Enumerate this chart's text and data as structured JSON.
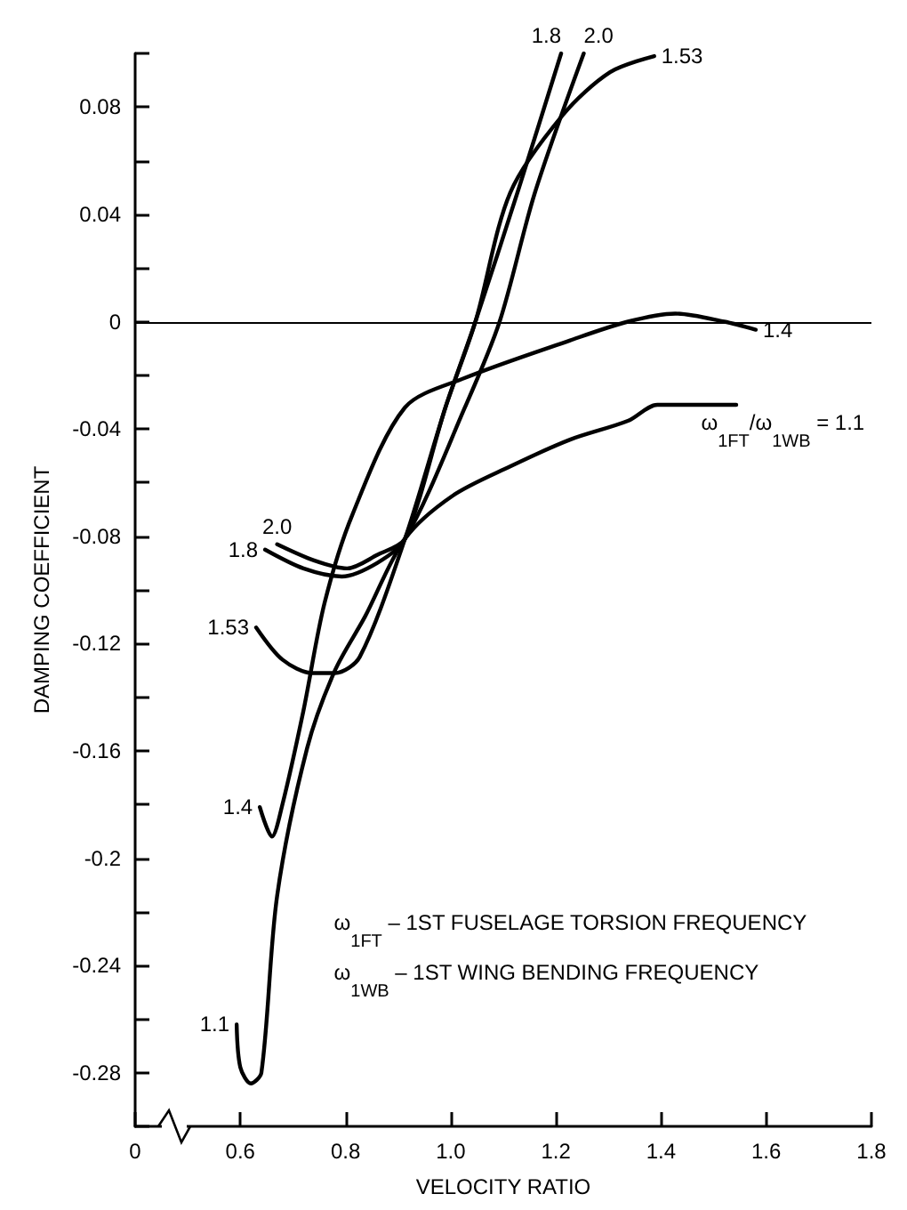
{
  "chart_data": {
    "type": "line",
    "xlabel": "VELOCITY RATIO",
    "ylabel": "DAMPING COEFFICIENT",
    "xlim": [
      0.4,
      1.8
    ],
    "xticks": [
      {
        "value": 0.4,
        "label": "0"
      },
      0.6,
      0.8,
      {
        "value": 1.0,
        "label": "1.0"
      },
      1.2,
      1.4,
      1.6,
      1.8
    ],
    "ylim": [
      -0.3,
      0.1
    ],
    "yticks": [
      {
        "value": -0.3,
        "label": null
      },
      -0.28,
      {
        "value": -0.26,
        "label": null
      },
      -0.24,
      {
        "value": -0.22,
        "label": null
      },
      -0.2,
      {
        "value": -0.18,
        "label": null
      },
      -0.16,
      {
        "value": -0.14,
        "label": null
      },
      -0.12,
      {
        "value": -0.1,
        "label": null
      },
      -0.08,
      {
        "value": -0.06,
        "label": null
      },
      -0.04,
      {
        "value": -0.02,
        "label": null
      },
      0,
      {
        "value": 0.02,
        "label": null
      },
      0.04,
      {
        "value": 0.06,
        "label": null
      },
      0.08,
      {
        "value": 0.1,
        "label": null
      }
    ],
    "grid": false,
    "legend": false,
    "marker": "none",
    "line_style": "solid",
    "ref_lines": [
      {
        "axis": "y",
        "value": 0,
        "color": "#000000"
      }
    ],
    "series": [
      {
        "name": "1.1",
        "color": "#000000",
        "x": [
          0.593,
          0.6,
          0.62,
          0.64,
          0.67,
          0.727,
          0.78,
          0.837,
          0.913,
          1.003,
          1.113,
          1.227,
          1.337,
          1.393,
          1.543
        ],
        "values": [
          -0.262,
          -0.278,
          -0.284,
          -0.28,
          -0.214,
          -0.159,
          -0.13,
          -0.11,
          -0.081,
          -0.065,
          -0.054,
          -0.044,
          -0.037,
          -0.031,
          -0.031
        ]
      },
      {
        "name": "1.4",
        "color": "#000000",
        "x": [
          0.637,
          0.66,
          0.68,
          0.72,
          0.76,
          0.813,
          0.913,
          1.027,
          1.227,
          1.337,
          1.427,
          1.52,
          1.58
        ],
        "values": [
          -0.181,
          -0.192,
          -0.18,
          -0.145,
          -0.105,
          -0.072,
          -0.032,
          -0.021,
          -0.007,
          0,
          0.003,
          0,
          -0.003
        ]
      },
      {
        "name": "1.53",
        "color": "#000000",
        "x": [
          0.63,
          0.68,
          0.737,
          0.78,
          0.827,
          0.913,
          0.99,
          1.047,
          1.113,
          1.213,
          1.303,
          1.387
        ],
        "values": [
          -0.114,
          -0.126,
          -0.131,
          -0.131,
          -0.125,
          -0.081,
          -0.032,
          0,
          0.048,
          0.077,
          0.093,
          0.099
        ]
      },
      {
        "name": "1.8",
        "color": "#000000",
        "x": [
          0.647,
          0.72,
          0.793,
          0.86,
          0.913,
          0.99,
          1.047,
          1.13,
          1.21
        ],
        "values": [
          -0.085,
          -0.092,
          -0.095,
          -0.09,
          -0.081,
          -0.032,
          0,
          0.05,
          0.1
        ]
      },
      {
        "name": "2.0",
        "color": "#000000",
        "x": [
          0.67,
          0.74,
          0.803,
          0.86,
          0.913,
          1.027,
          1.093,
          1.16,
          1.253
        ],
        "values": [
          -0.083,
          -0.089,
          -0.092,
          -0.087,
          -0.081,
          -0.032,
          0,
          0.048,
          0.1
        ]
      }
    ],
    "annotations": [
      {
        "text": "ω$_{1FT}$/ω$_{1WB}$ = 1.1",
        "x": 1.543,
        "y": -0.031
      },
      "ω$_{1FT}$ – 1ST FUSELAGE TORSION FREQUENCY",
      "ω$_{1WB}$ – 1ST WING BENDING FREQUENCY"
    ]
  }
}
